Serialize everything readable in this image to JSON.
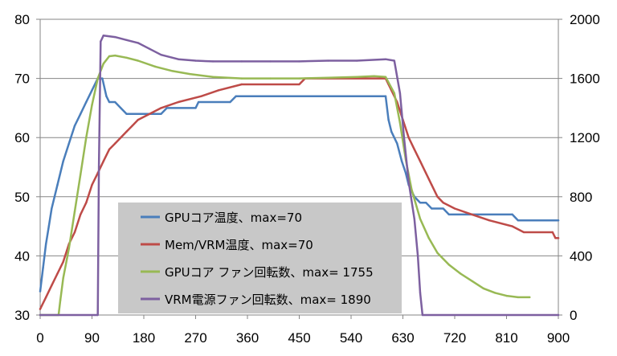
{
  "chart_data": {
    "type": "line",
    "x_ticks": [
      "0",
      "90",
      "180",
      "270",
      "360",
      "450",
      "540",
      "630",
      "720",
      "810",
      "900"
    ],
    "y_left_ticks": [
      "30",
      "40",
      "50",
      "60",
      "70",
      "80"
    ],
    "y_right_ticks": [
      "0",
      "400",
      "800",
      "1200",
      "1600",
      "2000"
    ],
    "xlim": [
      0,
      900
    ],
    "ylim_left": [
      30,
      80
    ],
    "ylim_right": [
      0,
      2000
    ],
    "grid": true,
    "legend_placement": "bottom-center",
    "series": [
      {
        "name": "GPUコア温度、max=70",
        "axis": "left",
        "color": "#4a7ebb",
        "points": [
          [
            0,
            34
          ],
          [
            5,
            38
          ],
          [
            10,
            42
          ],
          [
            15,
            45
          ],
          [
            20,
            48
          ],
          [
            30,
            52
          ],
          [
            40,
            56
          ],
          [
            50,
            59
          ],
          [
            60,
            62
          ],
          [
            70,
            64
          ],
          [
            80,
            66
          ],
          [
            90,
            68
          ],
          [
            100,
            70
          ],
          [
            108,
            70
          ],
          [
            115,
            67
          ],
          [
            120,
            66
          ],
          [
            130,
            66
          ],
          [
            140,
            65
          ],
          [
            150,
            64
          ],
          [
            200,
            64
          ],
          [
            210,
            64
          ],
          [
            220,
            65
          ],
          [
            270,
            65
          ],
          [
            275,
            66
          ],
          [
            330,
            66
          ],
          [
            340,
            67
          ],
          [
            600,
            67
          ],
          [
            605,
            63
          ],
          [
            610,
            61
          ],
          [
            620,
            59
          ],
          [
            628,
            56
          ],
          [
            635,
            54
          ],
          [
            640,
            52
          ],
          [
            645,
            51
          ],
          [
            650,
            50
          ],
          [
            660,
            49
          ],
          [
            670,
            49
          ],
          [
            680,
            48
          ],
          [
            700,
            48
          ],
          [
            710,
            47
          ],
          [
            820,
            47
          ],
          [
            830,
            46
          ],
          [
            900,
            46
          ]
        ]
      },
      {
        "name": "Mem/VRM温度、max=70",
        "axis": "left",
        "color": "#be4b48",
        "points": [
          [
            0,
            31
          ],
          [
            10,
            33
          ],
          [
            20,
            35
          ],
          [
            30,
            37
          ],
          [
            40,
            39
          ],
          [
            50,
            42
          ],
          [
            60,
            44
          ],
          [
            70,
            47
          ],
          [
            80,
            49
          ],
          [
            90,
            52
          ],
          [
            100,
            54
          ],
          [
            110,
            56
          ],
          [
            120,
            58
          ],
          [
            130,
            59
          ],
          [
            140,
            60
          ],
          [
            150,
            61
          ],
          [
            160,
            62
          ],
          [
            170,
            63
          ],
          [
            190,
            64
          ],
          [
            210,
            65
          ],
          [
            240,
            66
          ],
          [
            280,
            67
          ],
          [
            310,
            68
          ],
          [
            350,
            69
          ],
          [
            450,
            69
          ],
          [
            460,
            70
          ],
          [
            600,
            70
          ],
          [
            605,
            69
          ],
          [
            610,
            68
          ],
          [
            620,
            66
          ],
          [
            630,
            63
          ],
          [
            640,
            60
          ],
          [
            650,
            58
          ],
          [
            660,
            56
          ],
          [
            670,
            54
          ],
          [
            680,
            52
          ],
          [
            690,
            50
          ],
          [
            700,
            49
          ],
          [
            720,
            48
          ],
          [
            750,
            47
          ],
          [
            780,
            46
          ],
          [
            820,
            45
          ],
          [
            840,
            44
          ],
          [
            890,
            44
          ],
          [
            895,
            43
          ],
          [
            900,
            43
          ]
        ]
      },
      {
        "name": "GPUコア ファン回転数、max= 1755",
        "axis": "right",
        "color": "#98b954",
        "points": [
          [
            0,
            0
          ],
          [
            32,
            0
          ],
          [
            35,
            100
          ],
          [
            40,
            250
          ],
          [
            50,
            450
          ],
          [
            60,
            700
          ],
          [
            70,
            950
          ],
          [
            80,
            1200
          ],
          [
            90,
            1420
          ],
          [
            100,
            1600
          ],
          [
            110,
            1700
          ],
          [
            120,
            1750
          ],
          [
            130,
            1755
          ],
          [
            150,
            1740
          ],
          [
            170,
            1720
          ],
          [
            200,
            1680
          ],
          [
            230,
            1650
          ],
          [
            260,
            1630
          ],
          [
            300,
            1610
          ],
          [
            350,
            1600
          ],
          [
            400,
            1600
          ],
          [
            450,
            1600
          ],
          [
            500,
            1605
          ],
          [
            550,
            1610
          ],
          [
            580,
            1615
          ],
          [
            600,
            1610
          ],
          [
            615,
            1500
          ],
          [
            625,
            1300
          ],
          [
            635,
            1050
          ],
          [
            645,
            850
          ],
          [
            660,
            650
          ],
          [
            675,
            520
          ],
          [
            690,
            420
          ],
          [
            710,
            340
          ],
          [
            730,
            280
          ],
          [
            750,
            230
          ],
          [
            770,
            180
          ],
          [
            790,
            150
          ],
          [
            810,
            130
          ],
          [
            830,
            120
          ],
          [
            850,
            120
          ]
        ]
      },
      {
        "name": "VRM電源ファン回転数、max= 1890",
        "axis": "right",
        "color": "#7d60a0",
        "points": [
          [
            0,
            0
          ],
          [
            100,
            0
          ],
          [
            102,
            1000
          ],
          [
            105,
            1850
          ],
          [
            110,
            1890
          ],
          [
            130,
            1880
          ],
          [
            150,
            1860
          ],
          [
            170,
            1840
          ],
          [
            190,
            1800
          ],
          [
            210,
            1760
          ],
          [
            240,
            1730
          ],
          [
            270,
            1720
          ],
          [
            300,
            1715
          ],
          [
            350,
            1715
          ],
          [
            400,
            1715
          ],
          [
            450,
            1715
          ],
          [
            500,
            1720
          ],
          [
            550,
            1720
          ],
          [
            600,
            1730
          ],
          [
            615,
            1720
          ],
          [
            625,
            1500
          ],
          [
            632,
            1200
          ],
          [
            640,
            900
          ],
          [
            650,
            650
          ],
          [
            656,
            400
          ],
          [
            660,
            150
          ],
          [
            664,
            0
          ],
          [
            900,
            0
          ]
        ]
      }
    ]
  }
}
